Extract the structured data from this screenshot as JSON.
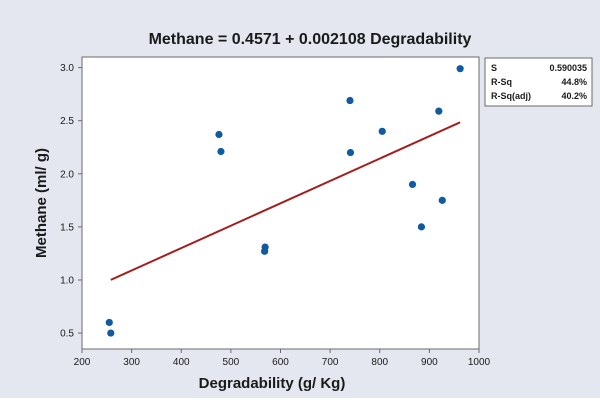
{
  "chart_data": {
    "type": "scatter",
    "title": "Methane = 0.4571 + 0.002108 Degradability",
    "xlabel": "Degradability (g/ Kg)",
    "ylabel": "Methane (ml/ g)",
    "xlim": [
      200,
      1000
    ],
    "ylim": [
      0.35,
      3.1
    ],
    "xticks": [
      "200",
      "300",
      "400",
      "500",
      "600",
      "700",
      "800",
      "900",
      "1000"
    ],
    "yticks": [
      "0.5",
      "1.0",
      "1.5",
      "2.0",
      "2.5",
      "3.0"
    ],
    "points": [
      {
        "x": 255,
        "y": 0.6
      },
      {
        "x": 258,
        "y": 0.5
      },
      {
        "x": 476,
        "y": 2.37
      },
      {
        "x": 480,
        "y": 2.21
      },
      {
        "x": 568,
        "y": 1.27
      },
      {
        "x": 569,
        "y": 1.31
      },
      {
        "x": 740,
        "y": 2.69
      },
      {
        "x": 741,
        "y": 2.2
      },
      {
        "x": 805,
        "y": 2.4
      },
      {
        "x": 866,
        "y": 1.9
      },
      {
        "x": 884,
        "y": 1.5
      },
      {
        "x": 919,
        "y": 2.59
      },
      {
        "x": 926,
        "y": 1.75
      },
      {
        "x": 962,
        "y": 2.99
      }
    ],
    "fit_line": {
      "intercept": 0.4571,
      "slope": 0.002108,
      "x_start": 258,
      "x_end": 962
    },
    "stats": [
      {
        "label": "S",
        "value": "0.590035"
      },
      {
        "label": "R-Sq",
        "value": "44.8%"
      },
      {
        "label": "R-Sq(adj)",
        "value": "40.2%"
      }
    ],
    "grid": false,
    "colors": {
      "background": "#e4e7ef",
      "plot": "#ffffff",
      "points": "#0f5aa0",
      "fit_line": "#a31e1e"
    }
  }
}
